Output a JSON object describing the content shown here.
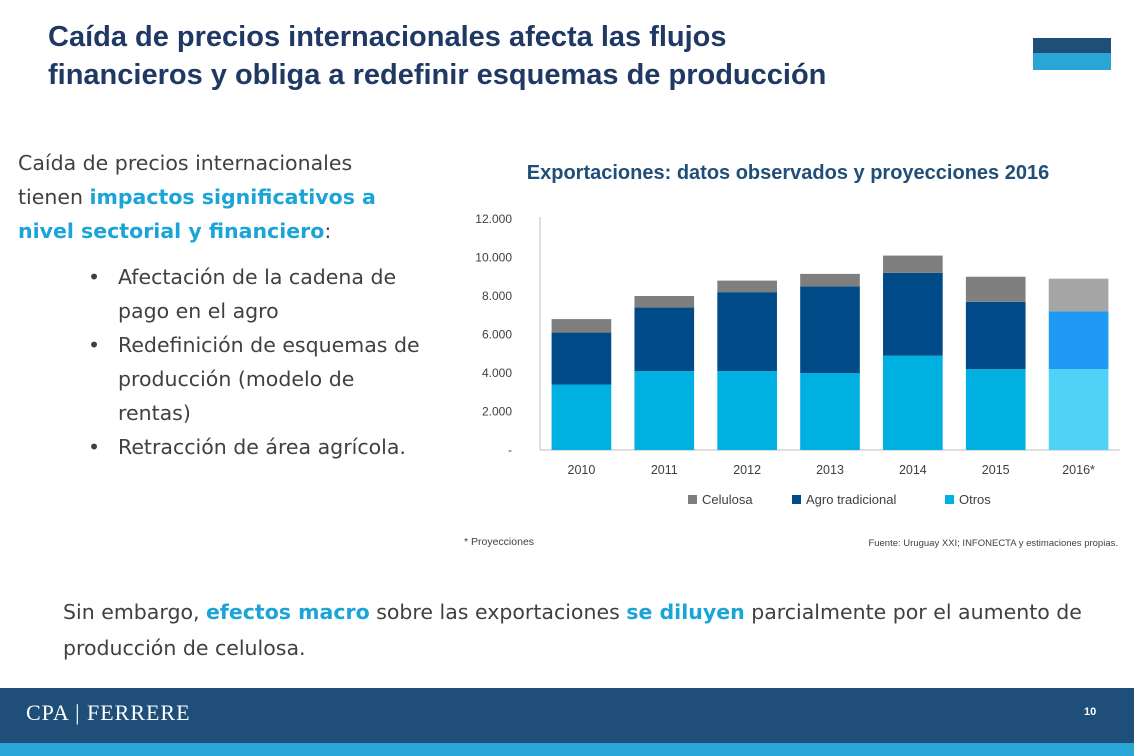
{
  "header": {
    "title_line1": "Caída de precios internacionales afecta las flujos",
    "title_line2": "financieros y obliga a redefinir esquemas de producción"
  },
  "left": {
    "intro_pre": "Caída de precios internacionales tienen ",
    "intro_highlight": "impactos significativos a nivel sectorial y financiero",
    "intro_post": ":",
    "bullet_char": "•",
    "bullets": [
      "Afectación de la cadena de pago en el agro",
      "Redefinición de esquemas de producción (modelo de rentas)",
      "Retracción de área agrícola."
    ]
  },
  "bottom": {
    "pre": "Sin embargo, ",
    "hl1": "efectos macro",
    "mid": " sobre las exportaciones ",
    "hl2": "se diluyen",
    "post": " parcialmente por el aumento de producción de celulosa."
  },
  "footer": {
    "logo": "CPA | FERRERE",
    "page_number": "10"
  },
  "chart_data": {
    "type": "bar",
    "stacked": true,
    "title": "Exportaciones: datos observados y proyecciones 2016",
    "categories": [
      "2010",
      "2011",
      "2012",
      "2013",
      "2014",
      "2015",
      "2016*"
    ],
    "series": [
      {
        "name": "Otros",
        "values": [
          3400,
          4100,
          4100,
          4000,
          4900,
          4200,
          4200
        ],
        "color": "#00b0e0",
        "highlight_color": "#4fd2f5"
      },
      {
        "name": "Agro tradicional",
        "values": [
          2700,
          3300,
          4100,
          4500,
          4300,
          3500,
          3000
        ],
        "color": "#004b87",
        "highlight_color": "#1e9af5"
      },
      {
        "name": "Celulosa",
        "values": [
          700,
          600,
          600,
          650,
          900,
          1300,
          1700
        ],
        "color": "#7f7f7f",
        "highlight_color": "#a6a6a6"
      }
    ],
    "legend_order": [
      "Celulosa",
      "Agro tradicional",
      "Otros"
    ],
    "highlight_category": "2016*",
    "yticks": [
      "-",
      "2.000",
      "4.000",
      "6.000",
      "8.000",
      "10.000",
      "12.000"
    ],
    "ylim": [
      0,
      12000
    ],
    "legend_position": "bottom",
    "footnote": "* Proyecciones",
    "source": "Fuente: Uruguay XXI; INFONECTA y estimaciones propias."
  }
}
